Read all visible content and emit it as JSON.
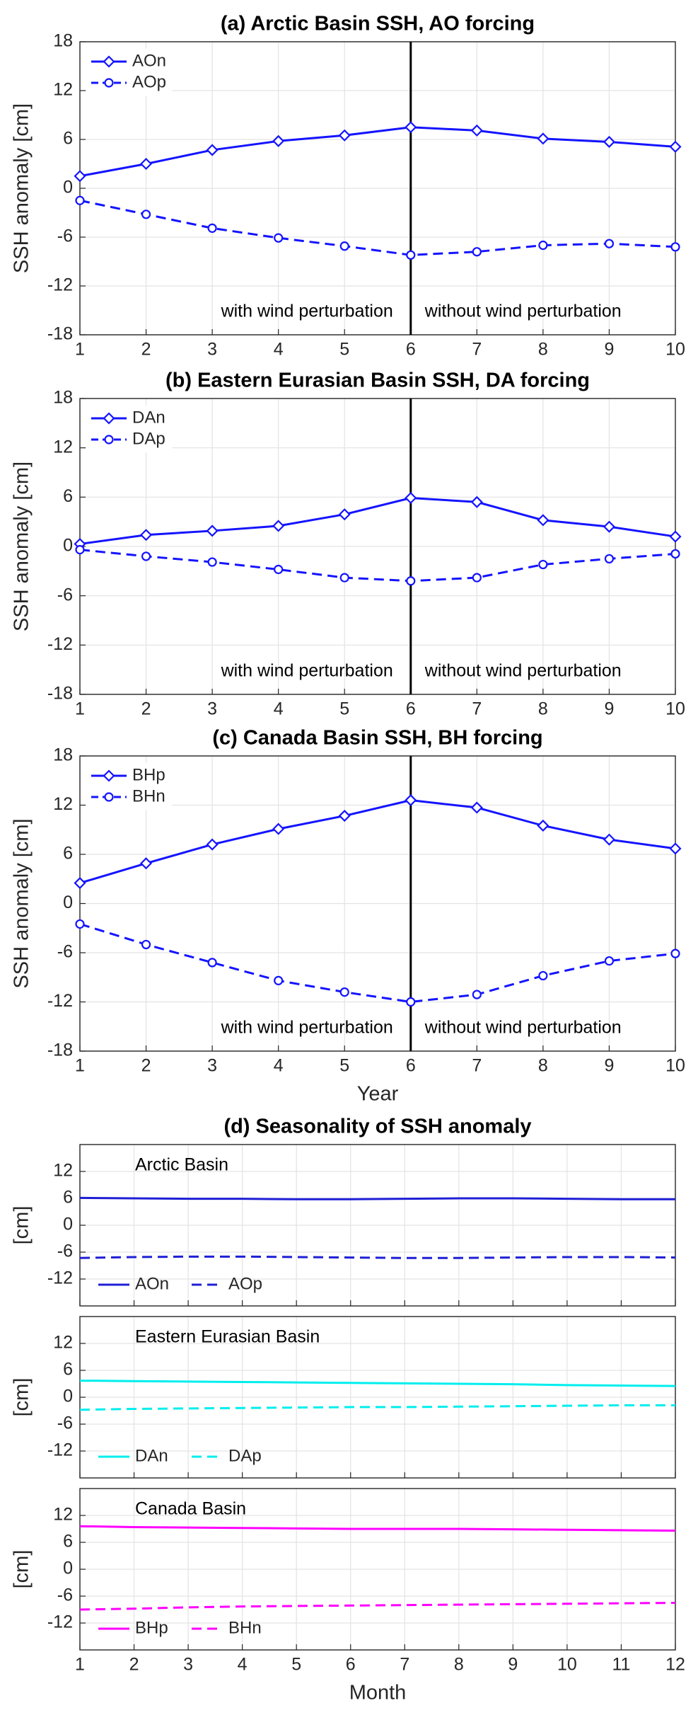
{
  "chart_data": [
    {
      "type": "line",
      "title": "(a) Arctic Basin SSH, AO forcing",
      "ylabel": "SSH anomaly [cm]",
      "x": [
        1,
        2,
        3,
        4,
        5,
        6,
        7,
        8,
        9,
        10
      ],
      "xlim": [
        1,
        10
      ],
      "xticks": [
        1,
        2,
        3,
        4,
        5,
        6,
        7,
        8,
        9,
        10
      ],
      "xtick_labels": true,
      "ylim": [
        -18,
        18
      ],
      "yticks": [
        -18,
        -12,
        -6,
        0,
        6,
        12,
        18
      ],
      "grid": true,
      "legend": "upper left",
      "vline_x": 6,
      "annotations": [
        "with wind perturbation",
        "without wind perturbation"
      ],
      "series": [
        {
          "name": "AOn",
          "color": "#1414ff",
          "line_style": "solid",
          "marker": "diamond",
          "values": [
            1.5,
            3.0,
            4.7,
            5.8,
            6.5,
            7.5,
            7.1,
            6.1,
            5.7,
            5.1
          ]
        },
        {
          "name": "AOp",
          "color": "#1414ff",
          "line_style": "dashed",
          "marker": "circle",
          "values": [
            -1.5,
            -3.2,
            -4.9,
            -6.1,
            -7.1,
            -8.2,
            -7.8,
            -7.0,
            -6.8,
            -7.2
          ]
        }
      ]
    },
    {
      "type": "line",
      "title": "(b) Eastern Eurasian Basin SSH, DA forcing",
      "ylabel": "SSH anomaly [cm]",
      "x": [
        1,
        2,
        3,
        4,
        5,
        6,
        7,
        8,
        9,
        10
      ],
      "xlim": [
        1,
        10
      ],
      "xticks": [
        1,
        2,
        3,
        4,
        5,
        6,
        7,
        8,
        9,
        10
      ],
      "xtick_labels": true,
      "ylim": [
        -18,
        18
      ],
      "yticks": [
        -18,
        -12,
        -6,
        0,
        6,
        12,
        18
      ],
      "grid": true,
      "legend": "upper left",
      "vline_x": 6,
      "annotations": [
        "with wind perturbation",
        "without wind perturbation"
      ],
      "series": [
        {
          "name": "DAn",
          "color": "#1414ff",
          "line_style": "solid",
          "marker": "diamond",
          "values": [
            0.3,
            1.4,
            1.9,
            2.5,
            3.9,
            5.9,
            5.4,
            3.2,
            2.4,
            1.2
          ]
        },
        {
          "name": "DAp",
          "color": "#1414ff",
          "line_style": "dashed",
          "marker": "circle",
          "values": [
            -0.4,
            -1.2,
            -1.9,
            -2.8,
            -3.8,
            -4.2,
            -3.8,
            -2.2,
            -1.5,
            -0.9
          ]
        }
      ]
    },
    {
      "type": "line",
      "title": "(c) Canada Basin SSH, BH forcing",
      "ylabel": "SSH anomaly [cm]",
      "xlabel": "Year",
      "x": [
        1,
        2,
        3,
        4,
        5,
        6,
        7,
        8,
        9,
        10
      ],
      "xlim": [
        1,
        10
      ],
      "xticks": [
        1,
        2,
        3,
        4,
        5,
        6,
        7,
        8,
        9,
        10
      ],
      "xtick_labels": true,
      "ylim": [
        -18,
        18
      ],
      "yticks": [
        -18,
        -12,
        -6,
        0,
        6,
        12,
        18
      ],
      "grid": true,
      "legend": "upper left",
      "vline_x": 6,
      "annotations": [
        "with wind perturbation",
        "without wind perturbation"
      ],
      "series": [
        {
          "name": "BHp",
          "color": "#1414ff",
          "line_style": "solid",
          "marker": "diamond",
          "values": [
            2.5,
            4.9,
            7.2,
            9.1,
            10.7,
            12.6,
            11.7,
            9.5,
            7.8,
            6.7
          ]
        },
        {
          "name": "BHn",
          "color": "#1414ff",
          "line_style": "dashed",
          "marker": "circle",
          "values": [
            -2.5,
            -5.0,
            -7.2,
            -9.4,
            -10.8,
            -12.0,
            -11.1,
            -8.8,
            -7.0,
            -6.1
          ]
        }
      ]
    },
    {
      "type": "line",
      "title": "(d) Seasonality of SSH anomaly",
      "panel_label": "Arctic Basin",
      "ylabel": "[cm]",
      "x": [
        1,
        2,
        3,
        4,
        5,
        6,
        7,
        8,
        9,
        10,
        11,
        12
      ],
      "xlim": [
        1,
        12
      ],
      "xticks": [
        1,
        2,
        3,
        4,
        5,
        6,
        7,
        8,
        9,
        10,
        11,
        12
      ],
      "xtick_labels": false,
      "ylim": [
        -18,
        18
      ],
      "yticks": [
        -12,
        -6,
        0,
        6,
        12
      ],
      "grid": true,
      "legend": "lower left",
      "series": [
        {
          "name": "AOn",
          "color": "#1f1fd6",
          "line_style": "solid",
          "values": [
            6.1,
            6.0,
            5.9,
            5.9,
            5.8,
            5.8,
            5.9,
            6.0,
            6.0,
            5.9,
            5.8,
            5.8
          ]
        },
        {
          "name": "AOp",
          "color": "#1f1fd6",
          "line_style": "dashed",
          "values": [
            -7.3,
            -7.1,
            -7.0,
            -7.0,
            -7.1,
            -7.2,
            -7.3,
            -7.3,
            -7.2,
            -7.1,
            -7.1,
            -7.2
          ]
        }
      ]
    },
    {
      "type": "line",
      "panel_label": "Eastern Eurasian Basin",
      "ylabel": "[cm]",
      "x": [
        1,
        2,
        3,
        4,
        5,
        6,
        7,
        8,
        9,
        10,
        11,
        12
      ],
      "xlim": [
        1,
        12
      ],
      "xticks": [
        1,
        2,
        3,
        4,
        5,
        6,
        7,
        8,
        9,
        10,
        11,
        12
      ],
      "xtick_labels": false,
      "ylim": [
        -18,
        18
      ],
      "yticks": [
        -12,
        -6,
        0,
        6,
        12
      ],
      "grid": true,
      "legend": "lower left",
      "series": [
        {
          "name": "DAn",
          "color": "#00eeee",
          "line_style": "solid",
          "values": [
            3.7,
            3.6,
            3.5,
            3.4,
            3.3,
            3.2,
            3.1,
            3.0,
            2.9,
            2.7,
            2.6,
            2.5
          ]
        },
        {
          "name": "DAp",
          "color": "#00eeee",
          "line_style": "dashed",
          "values": [
            -2.8,
            -2.6,
            -2.5,
            -2.4,
            -2.3,
            -2.2,
            -2.2,
            -2.1,
            -2.0,
            -1.9,
            -1.8,
            -1.8
          ]
        }
      ]
    },
    {
      "type": "line",
      "panel_label": "Canada Basin",
      "ylabel": "[cm]",
      "xlabel": "Month",
      "x": [
        1,
        2,
        3,
        4,
        5,
        6,
        7,
        8,
        9,
        10,
        11,
        12
      ],
      "xlim": [
        1,
        12
      ],
      "xticks": [
        1,
        2,
        3,
        4,
        5,
        6,
        7,
        8,
        9,
        10,
        11,
        12
      ],
      "xtick_labels": true,
      "ylim": [
        -18,
        18
      ],
      "yticks": [
        -12,
        -6,
        0,
        6,
        12
      ],
      "grid": true,
      "legend": "lower left",
      "series": [
        {
          "name": "BHp",
          "color": "#ff00ff",
          "line_style": "solid",
          "values": [
            9.6,
            9.4,
            9.3,
            9.2,
            9.1,
            9.0,
            9.0,
            9.0,
            8.9,
            8.8,
            8.7,
            8.6
          ]
        },
        {
          "name": "BHn",
          "color": "#ff00ff",
          "line_style": "dashed",
          "values": [
            -9.0,
            -8.8,
            -8.5,
            -8.3,
            -8.2,
            -8.1,
            -8.0,
            -7.9,
            -7.8,
            -7.7,
            -7.6,
            -7.5
          ]
        }
      ]
    }
  ]
}
